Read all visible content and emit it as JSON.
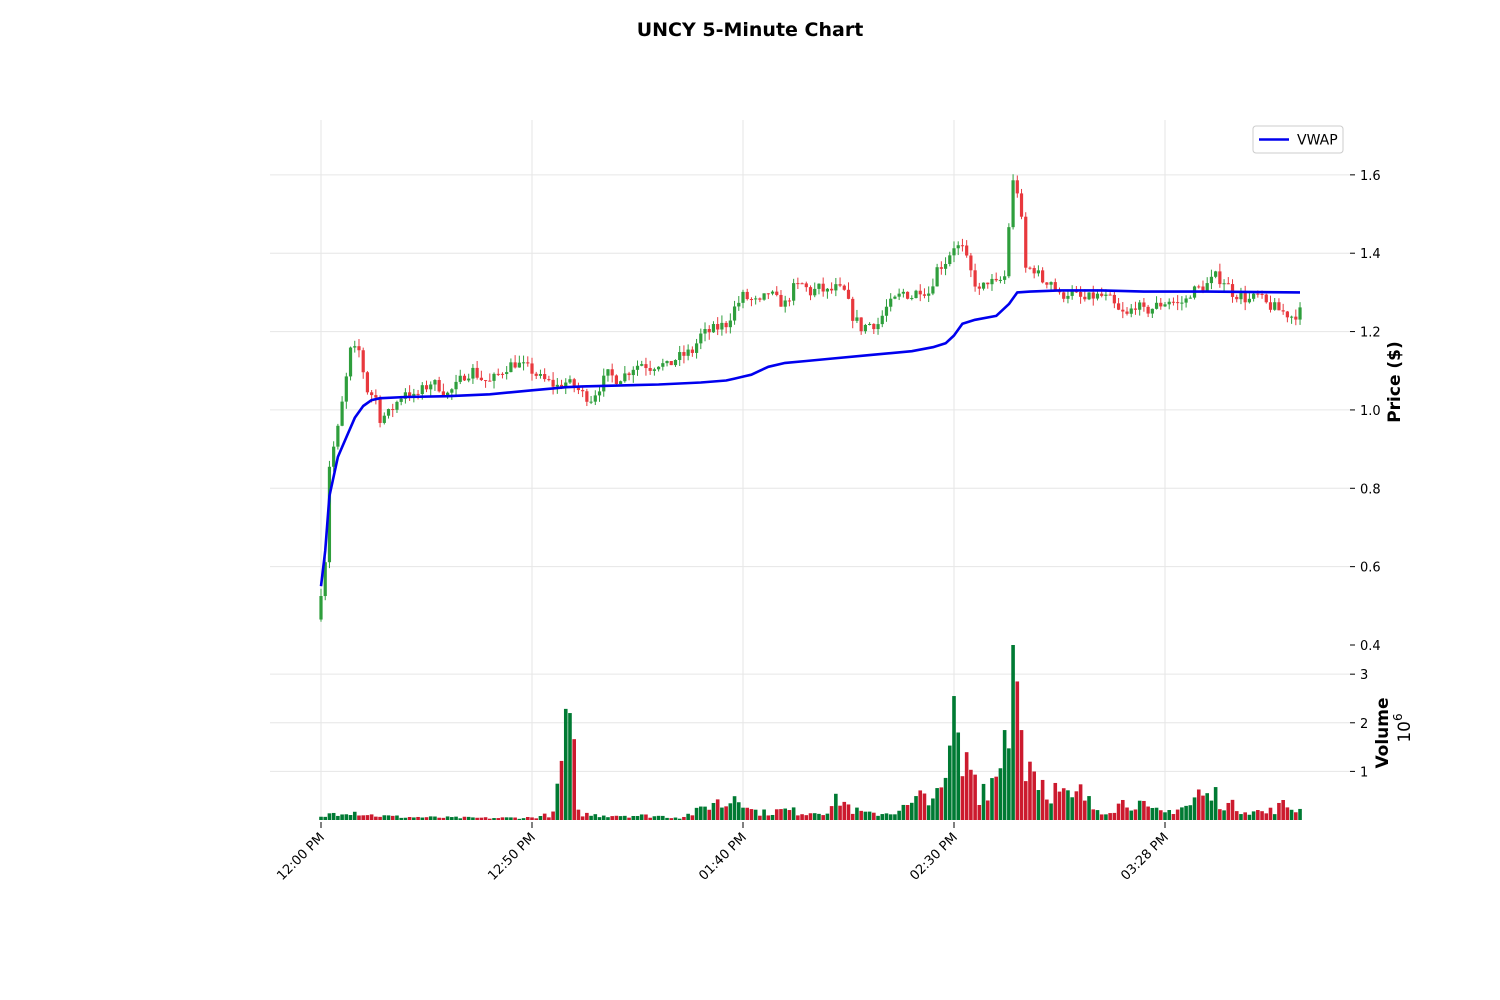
{
  "chart_data": {
    "type": "candlestick",
    "title": "UNCY 5-Minute Chart",
    "price_panel": {
      "ylabel": "Price ($)",
      "ylim": [
        0.4,
        1.74
      ],
      "yticks": [
        "0.4",
        "0.6",
        "0.8",
        "1.0",
        "1.2",
        "1.4",
        "1.6"
      ],
      "grid": true,
      "legend": {
        "placement": "top-right",
        "entries": [
          "VWAP"
        ]
      }
    },
    "volume_panel": {
      "ylabel": "Volume",
      "multiplier_label": "10",
      "multiplier_exp": "6",
      "ylim": [
        0,
        3.6
      ],
      "yticks": [
        "1",
        "2",
        "3"
      ]
    },
    "x_tick_labels": [
      "12:00 PM",
      "12:50 PM",
      "01:40 PM",
      "02:30 PM",
      "03:28 PM"
    ],
    "x_tick_index": [
      0,
      50,
      100,
      150,
      200
    ],
    "bar_count": 233,
    "colors": {
      "up": "#2e9e3c",
      "down": "#e8383d",
      "vol_up": "#007a33",
      "vol_down": "#cc1a2e",
      "vwap": "#0000ee",
      "grid": "#e6e6e6"
    },
    "vwap": [
      [
        0,
        0.55
      ],
      [
        1,
        0.64
      ],
      [
        2,
        0.78
      ],
      [
        4,
        0.88
      ],
      [
        6,
        0.93
      ],
      [
        8,
        0.98
      ],
      [
        10,
        1.01
      ],
      [
        12,
        1.025
      ],
      [
        14,
        1.03
      ],
      [
        20,
        1.033
      ],
      [
        30,
        1.035
      ],
      [
        40,
        1.04
      ],
      [
        45,
        1.045
      ],
      [
        50,
        1.05
      ],
      [
        55,
        1.055
      ],
      [
        58,
        1.058
      ],
      [
        62,
        1.06
      ],
      [
        80,
        1.065
      ],
      [
        90,
        1.07
      ],
      [
        96,
        1.075
      ],
      [
        98,
        1.08
      ],
      [
        100,
        1.085
      ],
      [
        102,
        1.09
      ],
      [
        104,
        1.1
      ],
      [
        106,
        1.11
      ],
      [
        110,
        1.12
      ],
      [
        115,
        1.125
      ],
      [
        120,
        1.13
      ],
      [
        130,
        1.14
      ],
      [
        140,
        1.15
      ],
      [
        145,
        1.16
      ],
      [
        148,
        1.17
      ],
      [
        150,
        1.19
      ],
      [
        152,
        1.22
      ],
      [
        155,
        1.23
      ],
      [
        160,
        1.24
      ],
      [
        163,
        1.27
      ],
      [
        165,
        1.3
      ],
      [
        168,
        1.302
      ],
      [
        175,
        1.305
      ],
      [
        185,
        1.305
      ],
      [
        195,
        1.302
      ],
      [
        210,
        1.302
      ],
      [
        232,
        1.3
      ]
    ],
    "anchors": [
      [
        0,
        0.54
      ],
      [
        1,
        0.62
      ],
      [
        2,
        0.86
      ],
      [
        4,
        0.95
      ],
      [
        6,
        1.08
      ],
      [
        7,
        1.15
      ],
      [
        9,
        1.15
      ],
      [
        10,
        1.1
      ],
      [
        11,
        1.05
      ],
      [
        13,
        1.03
      ],
      [
        14,
        0.98
      ],
      [
        16,
        0.99
      ],
      [
        18,
        1.02
      ],
      [
        20,
        1.05
      ],
      [
        22,
        1.03
      ],
      [
        24,
        1.05
      ],
      [
        26,
        1.07
      ],
      [
        28,
        1.06
      ],
      [
        30,
        1.04
      ],
      [
        32,
        1.06
      ],
      [
        34,
        1.09
      ],
      [
        36,
        1.1
      ],
      [
        38,
        1.08
      ],
      [
        40,
        1.07
      ],
      [
        42,
        1.09
      ],
      [
        44,
        1.11
      ],
      [
        46,
        1.12
      ],
      [
        48,
        1.11
      ],
      [
        50,
        1.1
      ],
      [
        52,
        1.08
      ],
      [
        54,
        1.07
      ],
      [
        56,
        1.06
      ],
      [
        58,
        1.07
      ],
      [
        60,
        1.06
      ],
      [
        62,
        1.04
      ],
      [
        64,
        1.03
      ],
      [
        66,
        1.06
      ],
      [
        68,
        1.09
      ],
      [
        70,
        1.08
      ],
      [
        72,
        1.09
      ],
      [
        74,
        1.11
      ],
      [
        76,
        1.12
      ],
      [
        78,
        1.11
      ],
      [
        80,
        1.12
      ],
      [
        82,
        1.11
      ],
      [
        84,
        1.13
      ],
      [
        86,
        1.14
      ],
      [
        88,
        1.15
      ],
      [
        90,
        1.19
      ],
      [
        92,
        1.2
      ],
      [
        94,
        1.21
      ],
      [
        96,
        1.22
      ],
      [
        98,
        1.26
      ],
      [
        100,
        1.29
      ],
      [
        102,
        1.28
      ],
      [
        104,
        1.27
      ],
      [
        106,
        1.3
      ],
      [
        108,
        1.28
      ],
      [
        110,
        1.27
      ],
      [
        112,
        1.31
      ],
      [
        114,
        1.32
      ],
      [
        116,
        1.3
      ],
      [
        118,
        1.31
      ],
      [
        120,
        1.3
      ],
      [
        122,
        1.31
      ],
      [
        124,
        1.3
      ],
      [
        126,
        1.24
      ],
      [
        128,
        1.21
      ],
      [
        130,
        1.22
      ],
      [
        132,
        1.22
      ],
      [
        134,
        1.26
      ],
      [
        136,
        1.28
      ],
      [
        138,
        1.3
      ],
      [
        140,
        1.29
      ],
      [
        142,
        1.31
      ],
      [
        144,
        1.3
      ],
      [
        146,
        1.36
      ],
      [
        148,
        1.38
      ],
      [
        150,
        1.42
      ],
      [
        152,
        1.41
      ],
      [
        154,
        1.35
      ],
      [
        156,
        1.3
      ],
      [
        158,
        1.33
      ],
      [
        160,
        1.32
      ],
      [
        162,
        1.34
      ],
      [
        163,
        1.47
      ],
      [
        164,
        1.58
      ],
      [
        165,
        1.56
      ],
      [
        166,
        1.48
      ],
      [
        167,
        1.36
      ],
      [
        169,
        1.36
      ],
      [
        171,
        1.33
      ],
      [
        173,
        1.33
      ],
      [
        175,
        1.29
      ],
      [
        177,
        1.3
      ],
      [
        179,
        1.29
      ],
      [
        181,
        1.28
      ],
      [
        183,
        1.29
      ],
      [
        185,
        1.29
      ],
      [
        187,
        1.28
      ],
      [
        189,
        1.25
      ],
      [
        191,
        1.24
      ],
      [
        193,
        1.27
      ],
      [
        195,
        1.25
      ],
      [
        197,
        1.26
      ],
      [
        199,
        1.27
      ],
      [
        201,
        1.28
      ],
      [
        203,
        1.27
      ],
      [
        205,
        1.28
      ],
      [
        206,
        1.3
      ],
      [
        208,
        1.31
      ],
      [
        210,
        1.32
      ],
      [
        212,
        1.34
      ],
      [
        214,
        1.33
      ],
      [
        216,
        1.3
      ],
      [
        218,
        1.29
      ],
      [
        220,
        1.28
      ],
      [
        222,
        1.29
      ],
      [
        224,
        1.27
      ],
      [
        226,
        1.26
      ],
      [
        228,
        1.25
      ],
      [
        230,
        1.24
      ],
      [
        232,
        1.25
      ]
    ],
    "volume_anchors": [
      [
        0,
        0.05
      ],
      [
        3,
        0.15
      ],
      [
        6,
        0.2
      ],
      [
        9,
        0.15
      ],
      [
        12,
        0.1
      ],
      [
        15,
        0.08
      ],
      [
        20,
        0.06
      ],
      [
        30,
        0.05
      ],
      [
        40,
        0.04
      ],
      [
        50,
        0.05
      ],
      [
        55,
        0.12
      ],
      [
        59,
        2.2
      ],
      [
        61,
        0.15
      ],
      [
        64,
        0.1
      ],
      [
        70,
        0.1
      ],
      [
        80,
        0.08
      ],
      [
        85,
        0.05
      ],
      [
        90,
        0.2
      ],
      [
        93,
        0.38
      ],
      [
        96,
        0.3
      ],
      [
        98,
        0.55
      ],
      [
        100,
        0.5
      ],
      [
        102,
        0.2
      ],
      [
        105,
        0.15
      ],
      [
        110,
        0.2
      ],
      [
        115,
        0.15
      ],
      [
        120,
        0.2
      ],
      [
        123,
        0.45
      ],
      [
        126,
        0.2
      ],
      [
        130,
        0.12
      ],
      [
        135,
        0.15
      ],
      [
        140,
        0.3
      ],
      [
        142,
        0.45
      ],
      [
        144,
        0.6
      ],
      [
        146,
        0.45
      ],
      [
        148,
        0.7
      ],
      [
        150,
        1.6
      ],
      [
        152,
        1.0
      ],
      [
        154,
        1.2
      ],
      [
        156,
        0.6
      ],
      [
        158,
        0.8
      ],
      [
        160,
        0.9
      ],
      [
        162,
        1.5
      ],
      [
        164,
        3.0
      ],
      [
        166,
        1.6
      ],
      [
        168,
        1.1
      ],
      [
        170,
        0.9
      ],
      [
        172,
        0.7
      ],
      [
        174,
        0.6
      ],
      [
        176,
        0.5
      ],
      [
        178,
        0.4
      ],
      [
        180,
        0.55
      ],
      [
        183,
        0.25
      ],
      [
        186,
        0.2
      ],
      [
        190,
        0.35
      ],
      [
        193,
        0.4
      ],
      [
        196,
        0.2
      ],
      [
        200,
        0.15
      ],
      [
        203,
        0.25
      ],
      [
        206,
        0.3
      ],
      [
        208,
        0.55
      ],
      [
        210,
        0.45
      ],
      [
        212,
        0.5
      ],
      [
        215,
        0.3
      ],
      [
        220,
        0.2
      ],
      [
        224,
        0.15
      ],
      [
        228,
        0.3
      ],
      [
        232,
        0.2
      ]
    ],
    "volume_spikes": [
      [
        59,
        2.2
      ],
      [
        150,
        2.55
      ],
      [
        151,
        1.8
      ],
      [
        164,
        3.6
      ],
      [
        165,
        2.85
      ],
      [
        166,
        1.85
      ],
      [
        162,
        1.85
      ],
      [
        167,
        0.8
      ],
      [
        168,
        1.2
      ]
    ]
  }
}
